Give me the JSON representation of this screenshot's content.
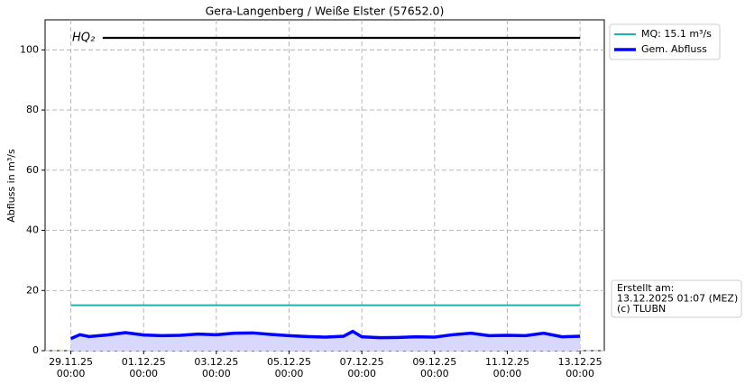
{
  "chart_data": {
    "type": "line",
    "title": "Gera-Langenberg / Weiße Elster (57652.0)",
    "y_label": "Abfluss in m³/s",
    "xlim": [
      "28.11.25 07:00",
      "13.12.25 16:00"
    ],
    "ylim": [
      0,
      110
    ],
    "xticks": [
      "29.11.25 00:00",
      "01.12.25 00:00",
      "03.12.25 00:00",
      "05.12.25 00:00",
      "07.12.25 00:00",
      "09.12.25 00:00",
      "11.12.25 00:00",
      "13.12.25 00:00"
    ],
    "yticks": [
      0,
      20,
      40,
      60,
      80,
      100
    ],
    "grid": true,
    "legend": "outside upper right",
    "series": [
      {
        "name": "MQ: 15.1 m³/s",
        "color": "#20b2aa",
        "width": 2,
        "x": [
          "29.11.25 00:00",
          "13.12.25 00:00"
        ],
        "values": [
          15.1,
          15.1
        ]
      },
      {
        "name": "Gem. Abfluss",
        "color": "#0000ff",
        "width": 3.5,
        "fill": "#d8d8ff",
        "x": [
          "29.11.25 00:00",
          "29.11.25 06:00",
          "29.11.25 12:00",
          "30.11.25 00:00",
          "30.11.25 12:00",
          "01.12.25 00:00",
          "01.12.25 12:00",
          "02.12.25 00:00",
          "02.12.25 12:00",
          "03.12.25 00:00",
          "03.12.25 12:00",
          "04.12.25 00:00",
          "04.12.25 12:00",
          "05.12.25 00:00",
          "05.12.25 12:00",
          "06.12.25 00:00",
          "06.12.25 12:00",
          "06.12.25 18:00",
          "07.12.25 00:00",
          "07.12.25 12:00",
          "08.12.25 00:00",
          "08.12.25 12:00",
          "09.12.25 00:00",
          "09.12.25 12:00",
          "10.12.25 00:00",
          "10.12.25 12:00",
          "11.12.25 00:00",
          "11.12.25 12:00",
          "12.12.25 00:00",
          "12.12.25 12:00",
          "13.12.25 00:00"
        ],
        "values": [
          4.0,
          5.3,
          4.7,
          5.2,
          6.0,
          5.2,
          5.0,
          5.1,
          5.5,
          5.3,
          5.8,
          5.9,
          5.4,
          5.0,
          4.7,
          4.5,
          4.8,
          6.4,
          4.6,
          4.3,
          4.4,
          4.6,
          4.5,
          5.3,
          5.8,
          5.0,
          5.1,
          5.0,
          5.8,
          4.6,
          4.8
        ]
      }
    ],
    "reference_lines": [
      {
        "label": "HQ₂",
        "value": 104,
        "color": "#000000",
        "x": [
          "29.11.25 21:00",
          "13.12.25 00:00"
        ]
      }
    ],
    "annotation": [
      "Erstellt am:",
      "13.12.2025 01:07 (MEZ)",
      "(c) TLUBN"
    ]
  }
}
